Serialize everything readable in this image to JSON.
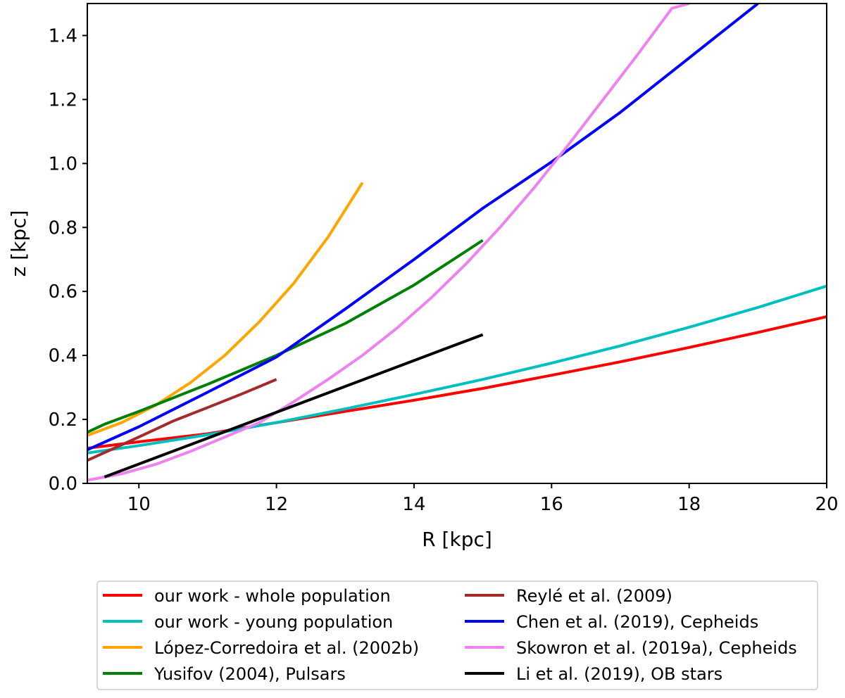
{
  "chart_data": {
    "type": "line",
    "title": "",
    "xlabel": "R [kpc]",
    "ylabel": "z [kpc]",
    "xlim": [
      9.25,
      20
    ],
    "ylim": [
      0,
      1.5
    ],
    "xticks": [
      10,
      12,
      14,
      16,
      18,
      20
    ],
    "yticks": [
      0.0,
      0.2,
      0.4,
      0.6,
      0.8,
      1.0,
      1.2,
      1.4
    ],
    "xtick_labels": [
      "10",
      "12",
      "14",
      "16",
      "18",
      "20"
    ],
    "ytick_labels": [
      "0.0",
      "0.2",
      "0.4",
      "0.6",
      "0.8",
      "1.0",
      "1.2",
      "1.4"
    ],
    "grid": false,
    "legend_position": "below",
    "series": [
      {
        "name": "our work - whole population",
        "color": "#ff0000",
        "x": [
          9.25,
          10,
          11,
          12,
          13,
          14,
          15,
          16,
          17,
          18,
          19,
          20
        ],
        "y": [
          0.11,
          0.13,
          0.155,
          0.19,
          0.225,
          0.26,
          0.297,
          0.338,
          0.38,
          0.425,
          0.472,
          0.521
        ]
      },
      {
        "name": "our work - young population",
        "color": "#00bfbf",
        "x": [
          9.25,
          10,
          11,
          12,
          13,
          14,
          15,
          16,
          17,
          18,
          19,
          20
        ],
        "y": [
          0.095,
          0.118,
          0.152,
          0.19,
          0.233,
          0.278,
          0.325,
          0.376,
          0.43,
          0.488,
          0.55,
          0.617
        ]
      },
      {
        "name": "López-Corredoira et al. (2002b)",
        "color": "#ffa500",
        "x": [
          9.25,
          9.75,
          10.25,
          10.75,
          11.25,
          11.75,
          12.25,
          12.75,
          13.25
        ],
        "y": [
          0.15,
          0.19,
          0.245,
          0.315,
          0.4,
          0.505,
          0.625,
          0.77,
          0.94
        ]
      },
      {
        "name": "Yusifov (2004), Pulsars",
        "color": "#008000",
        "x": [
          9.25,
          9.5,
          10,
          11,
          12,
          13,
          14,
          15
        ],
        "y": [
          0.16,
          0.185,
          0.225,
          0.31,
          0.4,
          0.5,
          0.62,
          0.76
        ]
      },
      {
        "name": "Reylé et al. (2009)",
        "color": "#a52a2a",
        "x": [
          9.25,
          10,
          10.5,
          11,
          11.5,
          12
        ],
        "y": [
          0.072,
          0.145,
          0.195,
          0.237,
          0.28,
          0.325
        ]
      },
      {
        "name": "Chen et al. (2019), Cepheids",
        "color": "#0000ff",
        "x": [
          9.25,
          10,
          11,
          12,
          13,
          14,
          15,
          16,
          17,
          18,
          19
        ],
        "y": [
          0.105,
          0.177,
          0.285,
          0.395,
          0.545,
          0.7,
          0.86,
          1.005,
          1.16,
          1.33,
          1.5
        ]
      },
      {
        "name": "Skowron et al. (2019a), Cepheids",
        "color": "#ee82ee",
        "x": [
          9.25,
          9.75,
          10.25,
          10.75,
          11.25,
          11.75,
          12.25,
          12.75,
          13.25,
          13.75,
          14.25,
          14.75,
          15.25,
          15.75,
          16.25,
          16.75,
          17.25,
          17.75,
          18
        ],
        "y": [
          0.01,
          0.03,
          0.06,
          0.1,
          0.145,
          0.19,
          0.255,
          0.325,
          0.4,
          0.485,
          0.58,
          0.685,
          0.8,
          0.925,
          1.06,
          1.2,
          1.34,
          1.485,
          1.5
        ]
      },
      {
        "name": "Li et al. (2019), OB stars",
        "color": "#000000",
        "x": [
          9.5,
          15
        ],
        "y": [
          0.02,
          0.465
        ]
      }
    ]
  }
}
